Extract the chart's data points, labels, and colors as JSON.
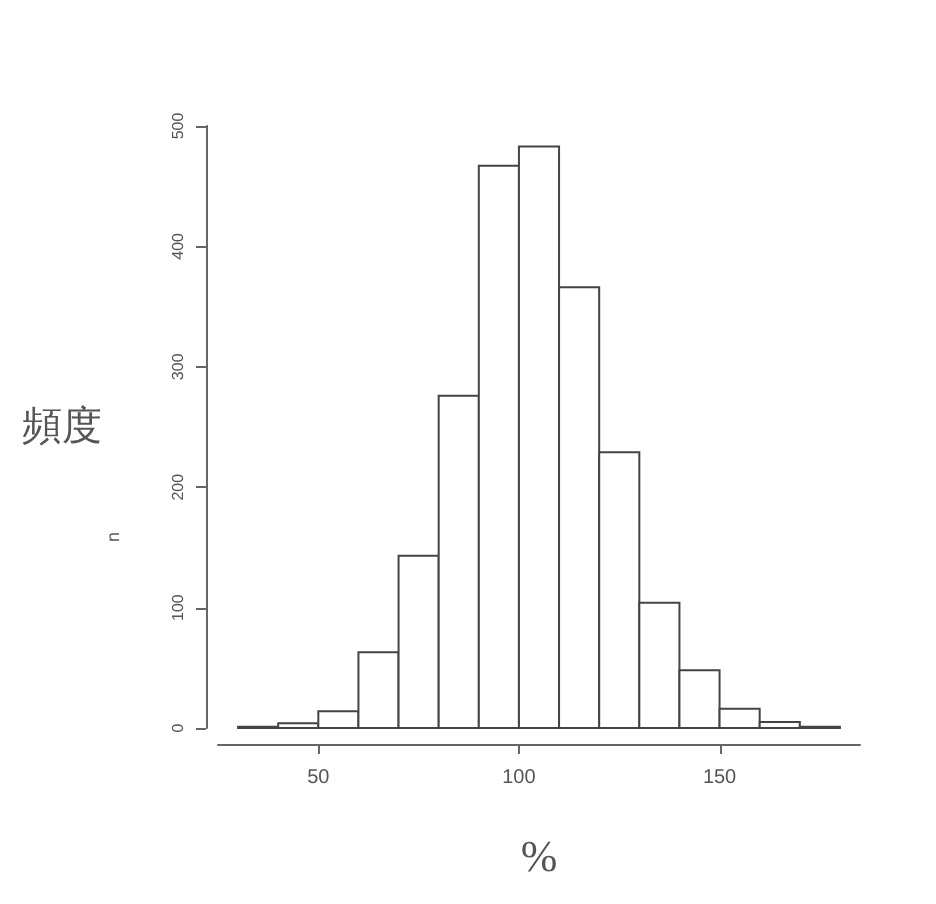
{
  "chart_data": {
    "type": "histogram",
    "xlabel": "%",
    "ylabel": "頻度",
    "bins": [
      30,
      40,
      50,
      60,
      70,
      80,
      90,
      100,
      110,
      120,
      130,
      140,
      150,
      160,
      170,
      180
    ],
    "values": [
      1,
      4,
      14,
      63,
      143,
      276,
      467,
      483,
      366,
      229,
      104,
      48,
      16,
      5,
      1
    ],
    "color": "#ffffff",
    "annotations": [
      "n"
    ],
    "xlim": [
      25,
      185
    ],
    "xticks": [
      50,
      100,
      150
    ],
    "ylim": [
      0,
      500
    ],
    "yticks": [
      0,
      100,
      200,
      300,
      400,
      500
    ],
    "grid": false
  }
}
